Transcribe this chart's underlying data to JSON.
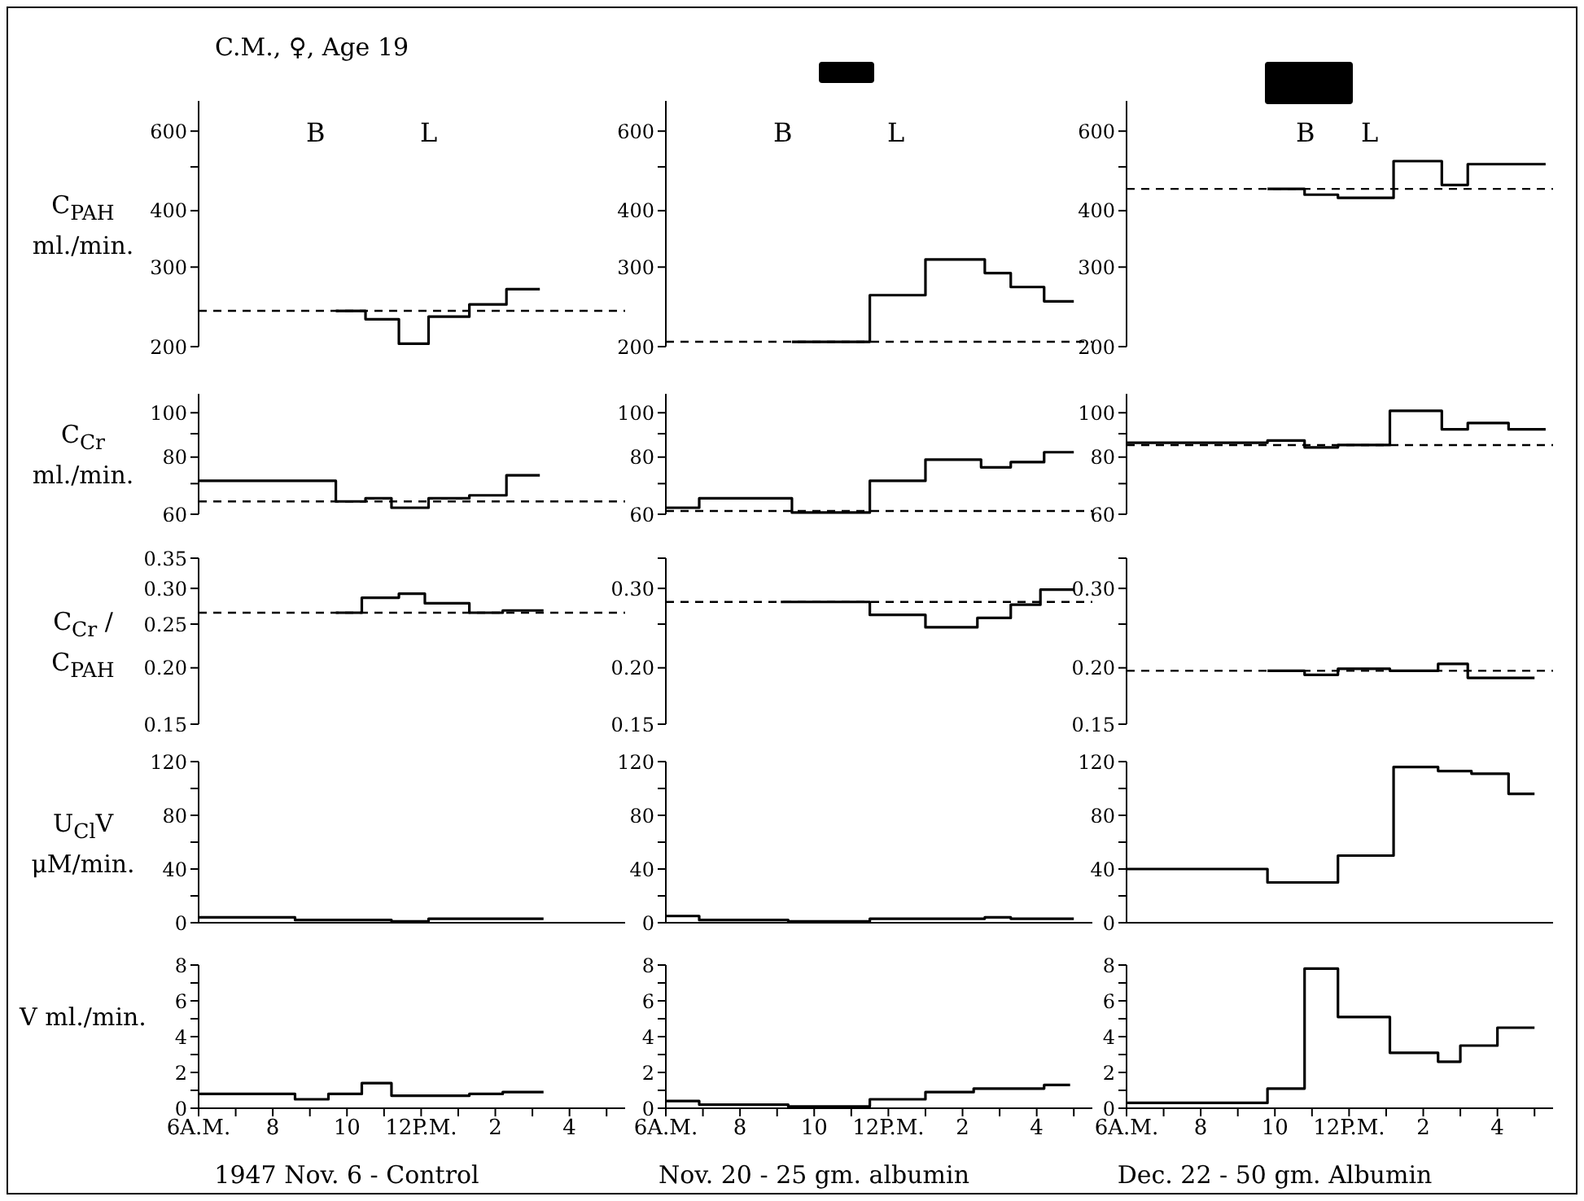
{
  "chart_data": [
    {
      "type": "step",
      "title": "C.M., ♀, Age 19",
      "ylabel": "C$_{PAH}$ ml./min.",
      "x": [
        "1947-11-06T09:42",
        "1947-11-06T10:30",
        "1947-11-06T11:24",
        "1947-11-06T12:12",
        "1947-11-06T13:18",
        "1947-11-06T14:18",
        "1947-11-06T15:12"
      ],
      "values": [
        240,
        230,
        203,
        233,
        248,
        268,
        268
      ],
      "color": "#000000",
      "xlim": [
        "1947-11-06T06:00",
        "1947-11-06T17:30"
      ],
      "ylim": [
        200,
        700
      ],
      "yticks": [
        200,
        300,
        400,
        {
          "value": 500,
          "label": null
        },
        600
      ],
      "log": true,
      "tick_labels": "y",
      "ref_lines": [
        {
          "axis": "y",
          "value": 240,
          "line_style": "dashed",
          "color": "#000000"
        }
      ],
      "annotations": [
        "B",
        "L"
      ]
    },
    {
      "type": "step",
      "x": [
        "1947-11-20T09:24",
        "1947-11-20T11:30",
        "1947-11-20T13:00",
        "1947-11-20T14:36",
        "1947-11-20T15:18",
        "1947-11-20T16:12",
        "1947-11-20T17:00"
      ],
      "values": [
        205,
        260,
        312,
        291,
        271,
        252,
        252
      ],
      "color": "#000000",
      "xlim": [
        "1947-11-20T06:00",
        "1947-11-20T17:30"
      ],
      "ylim": [
        200,
        700
      ],
      "yticks": [
        200,
        300,
        400,
        {
          "value": 500,
          "label": null
        },
        600
      ],
      "log": true,
      "tick_labels": "y",
      "ref_lines": [
        {
          "axis": "y",
          "value": 205,
          "line_style": "dashed",
          "color": "#000000"
        }
      ],
      "annotations": [
        "B",
        "L"
      ]
    },
    {
      "type": "step",
      "x": [
        "1947-12-22T09:48",
        "1947-12-22T10:48",
        "1947-12-22T11:42",
        "1947-12-22T13:12",
        "1947-12-22T14:30",
        "1947-12-22T15:12",
        "1947-12-22T17:18"
      ],
      "values": [
        447,
        434,
        427,
        515,
        456,
        507,
        507
      ],
      "color": "#000000",
      "xlim": [
        "1947-12-22T06:00",
        "1947-12-22T17:30"
      ],
      "ylim": [
        200,
        700
      ],
      "yticks": [
        200,
        300,
        400,
        {
          "value": 500,
          "label": null
        },
        600
      ],
      "log": true,
      "tick_labels": "y",
      "ref_lines": [
        {
          "axis": "y",
          "value": 447,
          "line_style": "dashed",
          "color": "#000000"
        }
      ],
      "annotations": [
        "B",
        "L"
      ]
    },
    {
      "type": "step",
      "ylabel": "C$_{Cr}$ ml./min.",
      "x": [
        "1947-11-06T06:00",
        "1947-11-06T09:42",
        "1947-11-06T10:30",
        "1947-11-06T11:12",
        "1947-11-06T12:12",
        "1947-11-06T13:18",
        "1947-11-06T14:18",
        "1947-11-06T15:12"
      ],
      "values": [
        71,
        64,
        65,
        62,
        65,
        66,
        73,
        73
      ],
      "color": "#000000",
      "xlim": [
        "1947-11-06T06:00",
        "1947-11-06T17:30"
      ],
      "ylim": [
        60,
        110
      ],
      "yticks": [
        60,
        {
          "value": 70,
          "label": null
        },
        80,
        {
          "value": 90,
          "label": null
        },
        100
      ],
      "log": true,
      "tick_labels": "y",
      "ref_lines": [
        {
          "axis": "y",
          "value": 64,
          "line_style": "dashed",
          "color": "#000000"
        }
      ]
    },
    {
      "type": "step",
      "x": [
        "1947-11-20T06:00",
        "1947-11-20T06:54",
        "1947-11-20T09:24",
        "1947-11-20T11:30",
        "1947-11-20T13:00",
        "1947-11-20T14:30",
        "1947-11-20T15:18",
        "1947-11-20T16:12",
        "1947-11-20T17:00"
      ],
      "values": [
        62,
        65,
        60.5,
        71,
        79,
        76,
        78,
        82,
        82
      ],
      "color": "#000000",
      "xlim": [
        "1947-11-20T06:00",
        "1947-11-20T17:30"
      ],
      "ylim": [
        60,
        110
      ],
      "yticks": [
        60,
        {
          "value": 70,
          "label": null
        },
        80,
        {
          "value": 90,
          "label": null
        },
        100
      ],
      "log": true,
      "tick_labels": "y",
      "ref_lines": [
        {
          "axis": "y",
          "value": 61,
          "line_style": "dashed",
          "color": "#000000"
        }
      ]
    },
    {
      "type": "step",
      "x": [
        "1947-12-22T06:00",
        "1947-12-22T09:48",
        "1947-12-22T10:48",
        "1947-12-22T11:42",
        "1947-12-22T13:06",
        "1947-12-22T14:30",
        "1947-12-22T15:12",
        "1947-12-22T16:18",
        "1947-12-22T17:18"
      ],
      "values": [
        86,
        87,
        84,
        85,
        101,
        92,
        95,
        92,
        92
      ],
      "color": "#000000",
      "xlim": [
        "1947-12-22T06:00",
        "1947-12-22T17:30"
      ],
      "ylim": [
        60,
        110
      ],
      "yticks": [
        60,
        {
          "value": 70,
          "label": null
        },
        80,
        {
          "value": 90,
          "label": null
        },
        100
      ],
      "log": true,
      "tick_labels": "y",
      "ref_lines": [
        {
          "axis": "y",
          "value": 85,
          "line_style": "dashed",
          "color": "#000000"
        }
      ]
    },
    {
      "type": "step",
      "ylabel": "C$_{Cr}$ / C$_{PAH}$",
      "x": [
        "1947-11-06T09:42",
        "1947-11-06T10:24",
        "1947-11-06T11:24",
        "1947-11-06T12:06",
        "1947-11-06T13:18",
        "1947-11-06T14:12",
        "1947-11-06T15:18"
      ],
      "values": [
        0.265,
        0.286,
        0.292,
        0.278,
        0.265,
        0.268,
        0.268
      ],
      "color": "#000000",
      "xlim": [
        "1947-11-06T06:00",
        "1947-11-06T17:30"
      ],
      "ylim": [
        0.15,
        0.35
      ],
      "yticks": [
        0.15,
        {
          "value": 0.2,
          "label": "0.20"
        },
        0.25,
        {
          "value": 0.3,
          "label": "0.30"
        },
        0.35
      ],
      "log": true,
      "tick_labels": "y",
      "ref_lines": [
        {
          "axis": "y",
          "value": 0.265,
          "line_style": "dashed",
          "color": "#000000"
        }
      ]
    },
    {
      "type": "step",
      "x": [
        "1947-11-20T09:06",
        "1947-11-20T11:30",
        "1947-11-20T13:00",
        "1947-11-20T14:24",
        "1947-11-20T15:18",
        "1947-11-20T16:06",
        "1947-11-20T17:00"
      ],
      "values": [
        0.28,
        0.262,
        0.246,
        0.258,
        0.276,
        0.298,
        0.298
      ],
      "color": "#000000",
      "xlim": [
        "1947-11-20T06:00",
        "1947-11-20T17:30"
      ],
      "ylim": [
        0.15,
        0.35
      ],
      "yticks": [
        0.15,
        {
          "value": 0.2,
          "label": "0.20"
        },
        {
          "value": 0.25,
          "label": null
        },
        {
          "value": 0.3,
          "label": "0.30"
        },
        {
          "value": 0.35,
          "label": null
        }
      ],
      "log": true,
      "tick_labels": "y",
      "ref_lines": [
        {
          "axis": "y",
          "value": 0.28,
          "line_style": "dashed",
          "color": "#000000"
        }
      ]
    },
    {
      "type": "step",
      "x": [
        "1947-12-22T09:48",
        "1947-12-22T10:48",
        "1947-12-22T11:42",
        "1947-12-22T13:06",
        "1947-12-22T14:24",
        "1947-12-22T15:12",
        "1947-12-22T17:00"
      ],
      "values": [
        0.197,
        0.193,
        0.199,
        0.197,
        0.204,
        0.19,
        0.19
      ],
      "color": "#000000",
      "xlim": [
        "1947-12-22T06:00",
        "1947-12-22T17:30"
      ],
      "ylim": [
        0.15,
        0.35
      ],
      "yticks": [
        0.15,
        {
          "value": 0.2,
          "label": "0.20"
        },
        {
          "value": 0.25,
          "label": null
        },
        {
          "value": 0.3,
          "label": "0.30"
        },
        {
          "value": 0.35,
          "label": null
        }
      ],
      "log": true,
      "tick_labels": "y",
      "ref_lines": [
        {
          "axis": "y",
          "value": 0.197,
          "line_style": "dashed",
          "color": "#000000"
        }
      ]
    },
    {
      "type": "step",
      "ylabel": "U$_{Cl}$V μM/min.",
      "x": [
        "1947-11-06T06:00",
        "1947-11-06T08:36",
        "1947-11-06T11:12",
        "1947-11-06T12:12",
        "1947-11-06T15:18"
      ],
      "values": [
        4,
        2,
        1,
        3,
        3
      ],
      "color": "#000000",
      "xlim": [
        "1947-11-06T06:00",
        "1947-11-06T17:30"
      ],
      "ylim": [
        0,
        120
      ],
      "yticks": [
        0,
        {
          "value": 20,
          "label": null
        },
        40,
        {
          "value": 60,
          "label": null
        },
        80,
        {
          "value": 100,
          "label": null
        },
        120
      ],
      "tick_labels": "y"
    },
    {
      "type": "step",
      "x": [
        "1947-11-20T06:00",
        "1947-11-20T06:54",
        "1947-11-20T09:18",
        "1947-11-20T11:30",
        "1947-11-20T14:36",
        "1947-11-20T15:18",
        "1947-11-20T17:00"
      ],
      "values": [
        5,
        2,
        1,
        3,
        4,
        3,
        3
      ],
      "color": "#000000",
      "xlim": [
        "1947-11-20T06:00",
        "1947-11-20T17:30"
      ],
      "ylim": [
        0,
        120
      ],
      "yticks": [
        0,
        {
          "value": 20,
          "label": null
        },
        40,
        {
          "value": 60,
          "label": null
        },
        80,
        {
          "value": 100,
          "label": null
        },
        120
      ],
      "tick_labels": "y"
    },
    {
      "type": "step",
      "x": [
        "1947-12-22T06:00",
        "1947-12-22T09:48",
        "1947-12-22T11:42",
        "1947-12-22T13:12",
        "1947-12-22T14:24",
        "1947-12-22T15:18",
        "1947-12-22T16:18",
        "1947-12-22T17:00"
      ],
      "values": [
        40,
        30,
        50,
        116,
        113,
        111,
        96,
        96
      ],
      "color": "#000000",
      "xlim": [
        "1947-12-22T06:00",
        "1947-12-22T17:30"
      ],
      "ylim": [
        0,
        120
      ],
      "yticks": [
        0,
        {
          "value": 20,
          "label": null
        },
        40,
        {
          "value": 60,
          "label": null
        },
        80,
        {
          "value": 100,
          "label": null
        },
        120
      ],
      "tick_labels": "y"
    },
    {
      "type": "step",
      "ylabel": "V ml./min.",
      "xlabel": "1947 Nov. 6 - Control",
      "x": [
        "1947-11-06T06:00",
        "1947-11-06T08:36",
        "1947-11-06T09:30",
        "1947-11-06T10:24",
        "1947-11-06T11:12",
        "1947-11-06T13:18",
        "1947-11-06T14:12",
        "1947-11-06T15:18"
      ],
      "values": [
        0.8,
        0.5,
        0.8,
        1.4,
        0.7,
        0.8,
        0.9,
        0.9
      ],
      "color": "#000000",
      "xlim": [
        "1947-11-06T06:00",
        "1947-11-06T17:30"
      ],
      "ylim": [
        0,
        8
      ],
      "yticks": [
        0,
        {
          "value": 1,
          "label": null
        },
        2,
        {
          "value": 3,
          "label": null
        },
        4,
        {
          "value": 5,
          "label": null
        },
        6,
        {
          "value": 7,
          "label": null
        },
        8
      ],
      "xticks": [
        {
          "value": "1947-11-06T06:00",
          "label": "6A.M."
        },
        {
          "value": "1947-11-06T07:00",
          "label": null
        },
        {
          "value": "1947-11-06T08:00",
          "label": "8"
        },
        {
          "value": "1947-11-06T09:00",
          "label": null
        },
        {
          "value": "1947-11-06T10:00",
          "label": "10"
        },
        {
          "value": "1947-11-06T11:00",
          "label": null
        },
        {
          "value": "1947-11-06T12:00",
          "label": "12P.M."
        },
        {
          "value": "1947-11-06T13:00",
          "label": null
        },
        {
          "value": "1947-11-06T14:00",
          "label": "2"
        },
        {
          "value": "1947-11-06T15:00",
          "label": null
        },
        {
          "value": "1947-11-06T16:00",
          "label": "4"
        },
        {
          "value": "1947-11-06T17:00",
          "label": null
        }
      ]
    },
    {
      "type": "step",
      "xlabel": "Nov. 20 - 25 gm. albumin",
      "x": [
        "1947-11-20T06:00",
        "1947-11-20T06:54",
        "1947-11-20T09:18",
        "1947-11-20T11:30",
        "1947-11-20T13:00",
        "1947-11-20T14:18",
        "1947-11-20T16:12",
        "1947-11-20T16:54"
      ],
      "values": [
        0.4,
        0.2,
        0.1,
        0.5,
        0.9,
        1.1,
        1.3,
        1.3
      ],
      "color": "#000000",
      "xlim": [
        "1947-11-20T06:00",
        "1947-11-20T17:30"
      ],
      "ylim": [
        0,
        8
      ],
      "yticks": [
        0,
        {
          "value": 1,
          "label": null
        },
        2,
        {
          "value": 3,
          "label": null
        },
        4,
        {
          "value": 5,
          "label": null
        },
        6,
        {
          "value": 7,
          "label": null
        },
        8
      ],
      "xticks": [
        {
          "value": "1947-11-20T06:00",
          "label": "6A.M."
        },
        {
          "value": "1947-11-20T07:00",
          "label": null
        },
        {
          "value": "1947-11-20T08:00",
          "label": "8"
        },
        {
          "value": "1947-11-20T09:00",
          "label": null
        },
        {
          "value": "1947-11-20T10:00",
          "label": "10"
        },
        {
          "value": "1947-11-20T11:00",
          "label": null
        },
        {
          "value": "1947-11-20T12:00",
          "label": "12P.M."
        },
        {
          "value": "1947-11-20T13:00",
          "label": null
        },
        {
          "value": "1947-11-20T14:00",
          "label": "2"
        },
        {
          "value": "1947-11-20T15:00",
          "label": null
        },
        {
          "value": "1947-11-20T16:00",
          "label": "4"
        },
        {
          "value": "1947-11-20T17:00",
          "label": null
        }
      ]
    },
    {
      "type": "step",
      "xlabel": "Dec. 22 - 50 gm. Albumin",
      "x": [
        "1947-12-22T06:00",
        "1947-12-22T09:48",
        "1947-12-22T10:48",
        "1947-12-22T11:42",
        "1947-12-22T13:06",
        "1947-12-22T14:24",
        "1947-12-22T15:00",
        "1947-12-22T16:00",
        "1947-12-22T17:00"
      ],
      "values": [
        0.3,
        1.1,
        7.8,
        5.1,
        3.1,
        2.6,
        3.5,
        4.5,
        4.5
      ],
      "color": "#000000",
      "xlim": [
        "1947-12-22T06:00",
        "1947-12-22T17:30"
      ],
      "ylim": [
        0,
        8
      ],
      "yticks": [
        0,
        {
          "value": 1,
          "label": null
        },
        2,
        {
          "value": 3,
          "label": null
        },
        4,
        {
          "value": 5,
          "label": null
        },
        6,
        {
          "value": 7,
          "label": null
        },
        8
      ],
      "xticks": [
        {
          "value": "1947-12-22T06:00",
          "label": "6A.M."
        },
        {
          "value": "1947-12-22T07:00",
          "label": null
        },
        {
          "value": "1947-12-22T08:00",
          "label": "8"
        },
        {
          "value": "1947-12-22T09:00",
          "label": null
        },
        {
          "value": "1947-12-22T10:00",
          "label": "10"
        },
        {
          "value": "1947-12-22T11:00",
          "label": null
        },
        {
          "value": "1947-12-22T12:00",
          "label": "12P.M."
        },
        {
          "value": "1947-12-22T13:00",
          "label": null
        },
        {
          "value": "1947-12-22T14:00",
          "label": "2"
        },
        {
          "value": "1947-12-22T15:00",
          "label": null
        },
        {
          "value": "1947-12-22T16:00",
          "label": "4"
        },
        {
          "value": "1947-12-22T17:00",
          "label": null
        }
      ]
    }
  ]
}
